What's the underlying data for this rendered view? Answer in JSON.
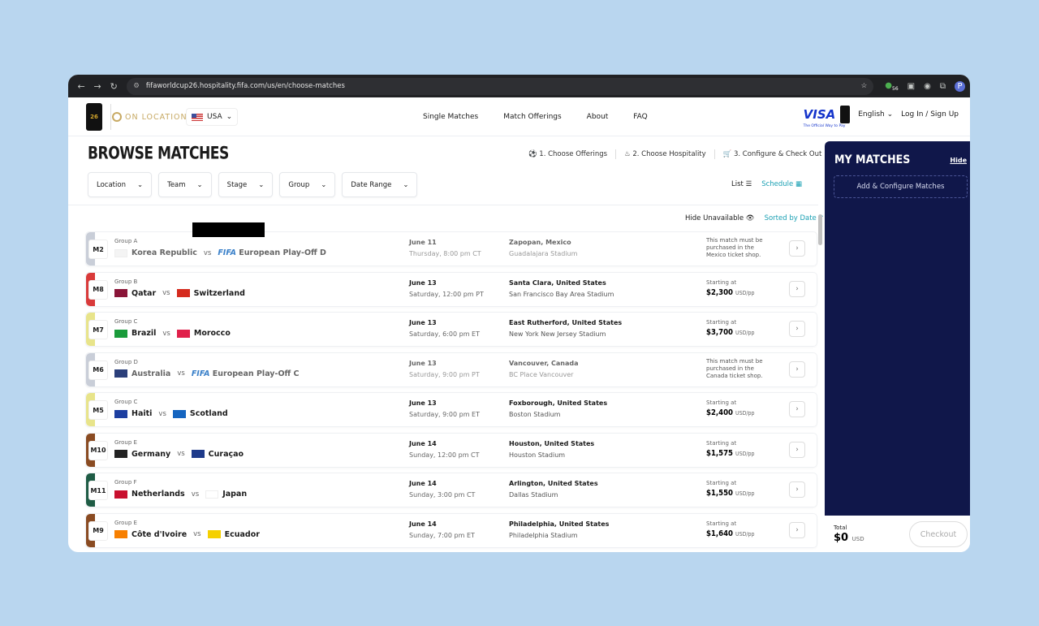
{
  "browser": {
    "url": "fifaworldcup26.hospitality.fifa.com/us/en/choose-matches",
    "avatar": "P",
    "ext_badge": "56"
  },
  "header": {
    "logo_text": "26",
    "brand": "ON LOCATION",
    "country": "USA",
    "nav": [
      "Single Matches",
      "Match Offerings",
      "About",
      "FAQ"
    ],
    "visa": "VISA",
    "visa_tagline": "The Official Way to Pay",
    "language": "English",
    "login": "Log In / Sign Up"
  },
  "page": {
    "title": "BROWSE MATCHES",
    "steps": [
      "1. Choose Offerings",
      "2. Choose Hospitality",
      "3. Configure & Check Out"
    ],
    "filters": [
      "Location",
      "Team",
      "Stage",
      "Group",
      "Date Range"
    ],
    "view_list": "List",
    "view_schedule": "Schedule",
    "hide_unavailable": "Hide Unavailable",
    "sorted": "Sorted by Date"
  },
  "matches": [
    {
      "num": "M2",
      "group": "Group A",
      "home": "Korea Republic",
      "away": "European Play-Off D",
      "away_fifa": "FIFA",
      "date": "June 11",
      "time": "Thursday, 8:00 pm CT",
      "location": "Zapopan, Mexico",
      "stadium": "Guadalajara Stadium",
      "note": "This match must be purchased in the Mexico ticket shop.",
      "color": "#c9ced8",
      "hf": "#f4f4f4",
      "af": ""
    },
    {
      "num": "M8",
      "group": "Group B",
      "home": "Qatar",
      "away": "Switzerland",
      "date": "June 13",
      "time": "Saturday, 12:00 pm PT",
      "location": "Santa Clara, United States",
      "stadium": "San Francisco Bay Area Stadium",
      "price": "$2,300",
      "color": "#d93a3a",
      "hf": "#8a1538",
      "af": "#d52b1e"
    },
    {
      "num": "M7",
      "group": "Group C",
      "home": "Brazil",
      "away": "Morocco",
      "date": "June 13",
      "time": "Saturday, 6:00 pm ET",
      "location": "East Rutherford, United States",
      "stadium": "New York New Jersey Stadium",
      "price": "$3,700",
      "color": "#e8e48a",
      "hf": "#1a9b3b",
      "af": "#e0204a"
    },
    {
      "num": "M6",
      "group": "Group D",
      "home": "Australia",
      "away": "European Play-Off C",
      "away_fifa": "FIFA",
      "date": "June 13",
      "time": "Saturday, 9:00 pm PT",
      "location": "Vancouver, Canada",
      "stadium": "BC Place Vancouver",
      "note": "This match must be purchased in the Canada ticket shop.",
      "color": "#c9ced8",
      "hf": "#2b3f7a",
      "af": ""
    },
    {
      "num": "M5",
      "group": "Group C",
      "home": "Haiti",
      "away": "Scotland",
      "date": "June 13",
      "time": "Saturday, 9:00 pm ET",
      "location": "Foxborough, United States",
      "stadium": "Boston Stadium",
      "price": "$2,400",
      "color": "#e8e48a",
      "hf": "#1d3fa0",
      "af": "#1565c0"
    },
    {
      "num": "M10",
      "group": "Group E",
      "home": "Germany",
      "away": "Curaçao",
      "date": "June 14",
      "time": "Sunday, 12:00 pm CT",
      "location": "Houston, United States",
      "stadium": "Houston Stadium",
      "price": "$1,575",
      "color": "#8a4b22",
      "hf": "#222",
      "af": "#1e3a8a"
    },
    {
      "num": "M11",
      "group": "Group F",
      "home": "Netherlands",
      "away": "Japan",
      "date": "June 14",
      "time": "Sunday, 3:00 pm CT",
      "location": "Arlington, United States",
      "stadium": "Dallas Stadium",
      "price": "$1,550",
      "color": "#1f5c45",
      "hf": "#c8102e",
      "af": "#ffffff"
    },
    {
      "num": "M9",
      "group": "Group E",
      "home": "Côte d'Ivoire",
      "away": "Ecuador",
      "date": "June 14",
      "time": "Sunday, 7:00 pm ET",
      "location": "Philadelphia, United States",
      "stadium": "Philadelphia Stadium",
      "price": "$1,640",
      "color": "#8a4b22",
      "hf": "#f77f00",
      "af": "#f5d000"
    }
  ],
  "labels": {
    "vs": "vs",
    "starting": "Starting at",
    "unit": "USD/pp"
  },
  "sidebar": {
    "title": "MY MATCHES",
    "hide": "Hide",
    "add": "Add & Configure Matches",
    "total_label": "Total",
    "total": "$0",
    "currency": "USD",
    "checkout": "Checkout"
  }
}
